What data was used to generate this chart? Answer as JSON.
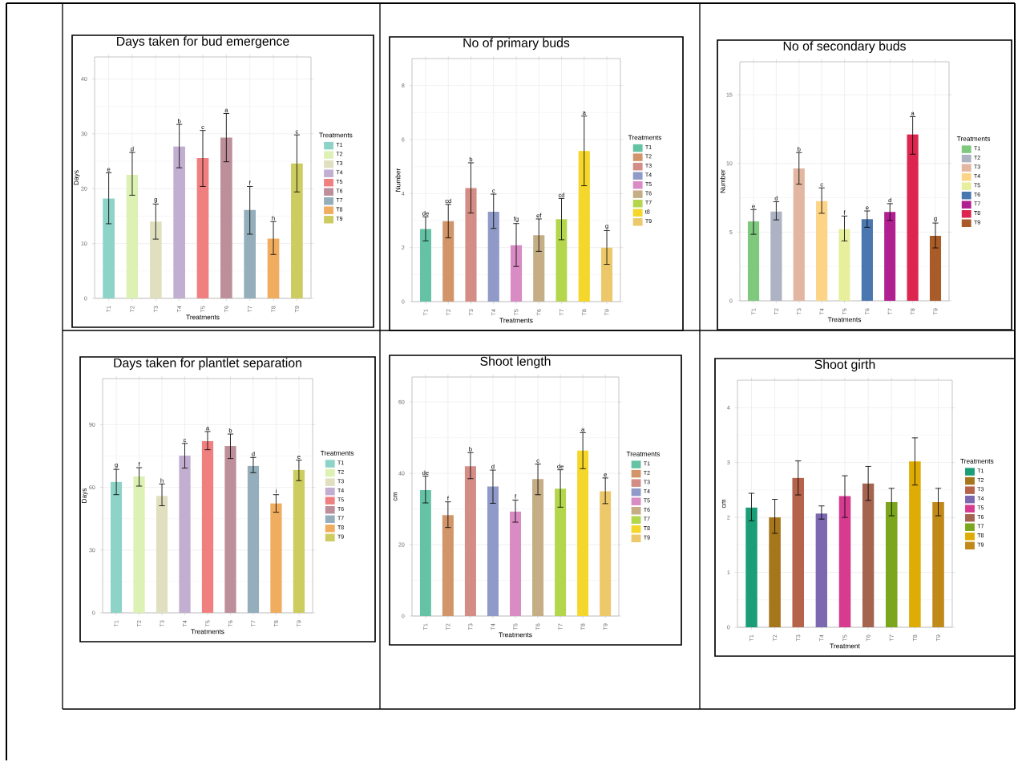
{
  "chart_data": [
    {
      "type": "bar",
      "title": "Days taken for bud emergence",
      "xlabel": "Treatments",
      "ylabel": "Days",
      "legend_title": "Treatments",
      "legend": "right",
      "grid": true,
      "categories": [
        "T1",
        "T2",
        "T3",
        "T4",
        "T5",
        "T6",
        "T7",
        "T8",
        "T9"
      ],
      "series": [
        {
          "name": "T1",
          "color": "#8dd3c7",
          "values": [
            18.2,
            null,
            null,
            null,
            null,
            null,
            null,
            null,
            null
          ],
          "errors": [
            [
              13.6,
              22.9
            ],
            null,
            null,
            null,
            null,
            null,
            null,
            null,
            null
          ]
        },
        {
          "name": "T2",
          "color": "#dcf1b3",
          "values": [
            null,
            22.5,
            null,
            null,
            null,
            null,
            null,
            null,
            null
          ],
          "errors": [
            null,
            [
              18.8,
              26.6
            ],
            null,
            null,
            null,
            null,
            null,
            null,
            null
          ]
        },
        {
          "name": "T3",
          "color": "#e0e0c0",
          "values": [
            null,
            null,
            14.0,
            null,
            null,
            null,
            null,
            null,
            null
          ],
          "errors": [
            null,
            null,
            [
              10.8,
              17.2
            ],
            null,
            null,
            null,
            null,
            null,
            null
          ]
        },
        {
          "name": "T4",
          "color": "#c2aed0",
          "values": [
            null,
            null,
            null,
            27.7,
            null,
            null,
            null,
            null,
            null
          ],
          "errors": [
            null,
            null,
            null,
            [
              23.8,
              31.7
            ],
            null,
            null,
            null,
            null,
            null
          ]
        },
        {
          "name": "T5",
          "color": "#f08080",
          "values": [
            null,
            null,
            null,
            null,
            25.6,
            null,
            null,
            null,
            null
          ],
          "errors": [
            null,
            null,
            null,
            null,
            [
              20.4,
              30.6
            ],
            null,
            null,
            null,
            null
          ]
        },
        {
          "name": "T6",
          "color": "#bc8f9a",
          "values": [
            null,
            null,
            null,
            null,
            null,
            29.3,
            null,
            null,
            null
          ],
          "errors": [
            null,
            null,
            null,
            null,
            null,
            [
              24.9,
              33.7
            ],
            null,
            null,
            null
          ]
        },
        {
          "name": "T7",
          "color": "#94aebb",
          "values": [
            null,
            null,
            null,
            null,
            null,
            null,
            16.1,
            null,
            null
          ],
          "errors": [
            null,
            null,
            null,
            null,
            null,
            null,
            [
              11.7,
              20.4
            ],
            null,
            null
          ]
        },
        {
          "name": "T8",
          "color": "#f0ad60",
          "values": [
            null,
            null,
            null,
            null,
            null,
            null,
            null,
            10.9,
            null
          ],
          "errors": [
            null,
            null,
            null,
            null,
            null,
            null,
            null,
            [
              8.0,
              14.0
            ],
            null
          ]
        },
        {
          "name": "T9",
          "color": "#cccc60",
          "values": [
            null,
            null,
            null,
            null,
            null,
            null,
            null,
            null,
            24.6
          ],
          "errors": [
            null,
            null,
            null,
            null,
            null,
            null,
            null,
            null,
            [
              19.4,
              29.8
            ]
          ]
        }
      ],
      "ylim": [
        0,
        44
      ],
      "yticks": [
        0,
        10,
        20,
        30,
        40
      ],
      "annotations": [
        {
          "text": "e",
          "x": "T1",
          "y": 22.9
        },
        {
          "text": "d",
          "x": "T2",
          "y": 26.6
        },
        {
          "text": "g",
          "x": "T3",
          "y": 17.2
        },
        {
          "text": "b",
          "x": "T4",
          "y": 31.7
        },
        {
          "text": "c",
          "x": "T5",
          "y": 30.6
        },
        {
          "text": "a",
          "x": "T6",
          "y": 33.7
        },
        {
          "text": "f",
          "x": "T7",
          "y": 20.4
        },
        {
          "text": "h",
          "x": "T8",
          "y": 14.0
        },
        {
          "text": "c",
          "x": "T9",
          "y": 29.8
        }
      ]
    },
    {
      "type": "bar",
      "title": "No of primary buds",
      "xlabel": "Treatments",
      "ylabel": "Number",
      "legend_title": "Treatments",
      "legend": "right",
      "grid": true,
      "categories": [
        "T1",
        "T2",
        "T3",
        "T4",
        "T5",
        "T6",
        "T7",
        "T8",
        "T9"
      ],
      "series": [
        {
          "name": "T1",
          "color": "#66c2a5",
          "values": [
            2.69,
            null,
            null,
            null,
            null,
            null,
            null,
            null,
            null
          ],
          "errors": [
            [
              2.25,
              3.14
            ],
            null,
            null,
            null,
            null,
            null,
            null,
            null,
            null
          ]
        },
        {
          "name": "T2",
          "color": "#d2956a",
          "values": [
            null,
            2.98,
            null,
            null,
            null,
            null,
            null,
            null,
            null
          ],
          "errors": [
            null,
            [
              2.36,
              3.6
            ],
            null,
            null,
            null,
            null,
            null,
            null,
            null
          ]
        },
        {
          "name": "T3",
          "color": "#d48d85",
          "values": [
            null,
            null,
            4.21,
            null,
            null,
            null,
            null,
            null,
            null
          ],
          "errors": [
            null,
            null,
            [
              3.28,
              5.14
            ],
            null,
            null,
            null,
            null,
            null,
            null
          ]
        },
        {
          "name": "T4",
          "color": "#8f9ac8",
          "values": [
            null,
            null,
            null,
            3.33,
            null,
            null,
            null,
            null,
            null
          ],
          "errors": [
            null,
            null,
            null,
            [
              2.71,
              3.98
            ],
            null,
            null,
            null,
            null,
            null
          ]
        },
        {
          "name": "T5",
          "color": "#d98bc4",
          "values": [
            null,
            null,
            null,
            null,
            2.09,
            null,
            null,
            null,
            null
          ],
          "errors": [
            null,
            null,
            null,
            null,
            [
              1.3,
              2.89
            ],
            null,
            null,
            null,
            null
          ]
        },
        {
          "name": "T6",
          "color": "#c5ad86",
          "values": [
            null,
            null,
            null,
            null,
            null,
            2.46,
            null,
            null,
            null
          ],
          "errors": [
            null,
            null,
            null,
            null,
            null,
            [
              1.86,
              3.06
            ],
            null,
            null,
            null
          ]
        },
        {
          "name": "T7",
          "color": "#b4d64c",
          "values": [
            null,
            null,
            null,
            null,
            null,
            null,
            3.05,
            null,
            null
          ],
          "errors": [
            null,
            null,
            null,
            null,
            null,
            null,
            [
              2.29,
              3.82
            ],
            null,
            null
          ]
        },
        {
          "name": "t8",
          "color": "#f5d62a",
          "values": [
            null,
            null,
            null,
            null,
            null,
            null,
            null,
            5.58,
            null
          ],
          "errors": [
            null,
            null,
            null,
            null,
            null,
            null,
            null,
            [
              4.29,
              6.87
            ],
            null
          ]
        },
        {
          "name": "T9",
          "color": "#ecc86a",
          "values": [
            null,
            null,
            null,
            null,
            null,
            null,
            null,
            null,
            2.0
          ],
          "errors": [
            null,
            null,
            null,
            null,
            null,
            null,
            null,
            null,
            [
              1.38,
              2.63
            ]
          ]
        }
      ],
      "ylim": [
        0,
        9
      ],
      "yticks": [
        0,
        2,
        4,
        6,
        8
      ],
      "annotations": [
        {
          "text": "de",
          "x": "T1",
          "y": 3.14
        },
        {
          "text": "cd",
          "x": "T2",
          "y": 3.6
        },
        {
          "text": "b",
          "x": "T3",
          "y": 5.14
        },
        {
          "text": "c",
          "x": "T4",
          "y": 3.98
        },
        {
          "text": "fg",
          "x": "T5",
          "y": 2.89
        },
        {
          "text": "ef",
          "x": "T6",
          "y": 3.06
        },
        {
          "text": "cd",
          "x": "T7",
          "y": 3.82
        },
        {
          "text": "a",
          "x": "T8",
          "y": 6.87
        },
        {
          "text": "g",
          "x": "T9",
          "y": 2.63
        }
      ]
    },
    {
      "type": "bar",
      "title": "No of secondary buds",
      "xlabel": "Treatments",
      "ylabel": "Number",
      "legend_title": "Treatments",
      "legend": "right",
      "grid": true,
      "categories": [
        "T1",
        "T2",
        "T3",
        "T4",
        "T5",
        "T6",
        "T7",
        "T8",
        "T9"
      ],
      "series": [
        {
          "name": "T1",
          "color": "#7fc97f",
          "values": [
            5.78,
            null,
            null,
            null,
            null,
            null,
            null,
            null,
            null
          ],
          "errors": [
            [
              4.84,
              6.64
            ],
            null,
            null,
            null,
            null,
            null,
            null,
            null,
            null
          ]
        },
        {
          "name": "T2",
          "color": "#aeb3c4",
          "values": [
            null,
            6.5,
            null,
            null,
            null,
            null,
            null,
            null,
            null
          ],
          "errors": [
            null,
            [
              5.89,
              7.21
            ],
            null,
            null,
            null,
            null,
            null,
            null,
            null
          ]
        },
        {
          "name": "T3",
          "color": "#e3b6a1",
          "values": [
            null,
            null,
            9.63,
            null,
            null,
            null,
            null,
            null,
            null
          ],
          "errors": [
            null,
            null,
            [
              8.49,
              10.79
            ],
            null,
            null,
            null,
            null,
            null,
            null
          ]
        },
        {
          "name": "T4",
          "color": "#fdd486",
          "values": [
            null,
            null,
            null,
            7.25,
            null,
            null,
            null,
            null,
            null
          ],
          "errors": [
            null,
            null,
            null,
            [
              6.37,
              8.22
            ],
            null,
            null,
            null,
            null,
            null
          ]
        },
        {
          "name": "T5",
          "color": "#e7ef9d",
          "values": [
            null,
            null,
            null,
            null,
            5.23,
            null,
            null,
            null,
            null
          ],
          "errors": [
            null,
            null,
            null,
            null,
            [
              4.36,
              6.17
            ],
            null,
            null,
            null,
            null
          ]
        },
        {
          "name": "T6",
          "color": "#4a77b0",
          "values": [
            null,
            null,
            null,
            null,
            null,
            5.94,
            null,
            null,
            null
          ],
          "errors": [
            null,
            null,
            null,
            null,
            null,
            [
              5.35,
              6.54
            ],
            null,
            null,
            null
          ]
        },
        {
          "name": "T7",
          "color": "#b02090",
          "values": [
            null,
            null,
            null,
            null,
            null,
            null,
            6.47,
            null,
            null
          ],
          "errors": [
            null,
            null,
            null,
            null,
            null,
            null,
            [
              5.85,
              7.07
            ],
            null,
            null
          ]
        },
        {
          "name": "T8",
          "color": "#dc2650",
          "values": [
            null,
            null,
            null,
            null,
            null,
            null,
            null,
            12.11,
            null
          ],
          "errors": [
            null,
            null,
            null,
            null,
            null,
            null,
            null,
            [
              10.67,
              13.4
            ],
            null
          ]
        },
        {
          "name": "T9",
          "color": "#a95c28",
          "values": [
            null,
            null,
            null,
            null,
            null,
            null,
            null,
            null,
            4.73
          ],
          "errors": [
            null,
            null,
            null,
            null,
            null,
            null,
            null,
            null,
            [
              3.85,
              5.66
            ]
          ]
        }
      ],
      "ylim": [
        0,
        17.4
      ],
      "yticks": [
        0,
        5,
        10,
        15
      ],
      "annotations": [
        {
          "text": "e",
          "x": "T1",
          "y": 6.64
        },
        {
          "text": "d",
          "x": "T2",
          "y": 7.21
        },
        {
          "text": "b",
          "x": "T3",
          "y": 10.79
        },
        {
          "text": "c",
          "x": "T4",
          "y": 8.22
        },
        {
          "text": "f",
          "x": "T5",
          "y": 6.17
        },
        {
          "text": "e",
          "x": "T6",
          "y": 6.54
        },
        {
          "text": "d",
          "x": "T7",
          "y": 7.07
        },
        {
          "text": "a",
          "x": "T8",
          "y": 13.4
        },
        {
          "text": "g",
          "x": "T9",
          "y": 5.66
        }
      ]
    },
    {
      "type": "bar",
      "title": "Days taken for plantlet separation",
      "xlabel": "Treatments",
      "ylabel": "Days",
      "legend_title": "Treatments",
      "legend": "right",
      "grid": true,
      "categories": [
        "T1",
        "T2",
        "T3",
        "T4",
        "T5",
        "T6",
        "T7",
        "T8",
        "T9"
      ],
      "series": [
        {
          "name": "T1",
          "color": "#8dd3c7",
          "values": [
            62.6,
            null,
            null,
            null,
            null,
            null,
            null,
            null,
            null
          ],
          "errors": [
            [
              56.5,
              68.6
            ],
            null,
            null,
            null,
            null,
            null,
            null,
            null,
            null
          ]
        },
        {
          "name": "T2",
          "color": "#dcf1b3",
          "values": [
            null,
            65.2,
            null,
            null,
            null,
            null,
            null,
            null,
            null
          ],
          "errors": [
            null,
            [
              60.6,
              69.4
            ],
            null,
            null,
            null,
            null,
            null,
            null,
            null
          ]
        },
        {
          "name": "T3",
          "color": "#e0e0c0",
          "values": [
            null,
            null,
            55.9,
            null,
            null,
            null,
            null,
            null,
            null
          ],
          "errors": [
            null,
            null,
            [
              51.2,
              61.6
            ],
            null,
            null,
            null,
            null,
            null,
            null
          ]
        },
        {
          "name": "T4",
          "color": "#c2aed0",
          "values": [
            null,
            null,
            null,
            75.2,
            null,
            null,
            null,
            null,
            null
          ],
          "errors": [
            null,
            null,
            null,
            [
              69.2,
              81.0
            ],
            null,
            null,
            null,
            null,
            null
          ]
        },
        {
          "name": "T5",
          "color": "#f08080",
          "values": [
            null,
            null,
            null,
            null,
            82.1,
            null,
            null,
            null,
            null
          ],
          "errors": [
            null,
            null,
            null,
            null,
            [
              78.0,
              86.7
            ],
            null,
            null,
            null,
            null
          ]
        },
        {
          "name": "T6",
          "color": "#bc8f9a",
          "values": [
            null,
            null,
            null,
            null,
            null,
            79.8,
            null,
            null,
            null
          ],
          "errors": [
            null,
            null,
            null,
            null,
            null,
            [
              73.8,
              85.5
            ],
            null,
            null,
            null
          ]
        },
        {
          "name": "T7",
          "color": "#94aebb",
          "values": [
            null,
            null,
            null,
            null,
            null,
            null,
            70.3,
            null,
            null
          ],
          "errors": [
            null,
            null,
            null,
            null,
            null,
            null,
            [
              67.0,
              74.3
            ],
            null,
            null
          ]
        },
        {
          "name": "T8",
          "color": "#f0ad60",
          "values": [
            null,
            null,
            null,
            null,
            null,
            null,
            null,
            52.4,
            null
          ],
          "errors": [
            null,
            null,
            null,
            null,
            null,
            null,
            null,
            [
              48.1,
              56.5
            ],
            null
          ]
        },
        {
          "name": "T9",
          "color": "#cccc60",
          "values": [
            null,
            null,
            null,
            null,
            null,
            null,
            null,
            null,
            68.4
          ],
          "errors": [
            null,
            null,
            null,
            null,
            null,
            null,
            null,
            null,
            [
              63.2,
              73.0
            ]
          ]
        }
      ],
      "ylim": [
        0,
        112
      ],
      "yticks": [
        0,
        30,
        60,
        90
      ],
      "annotations": [
        {
          "text": "g",
          "x": "T1",
          "y": 68.6
        },
        {
          "text": "f",
          "x": "T2",
          "y": 69.4
        },
        {
          "text": "h",
          "x": "T3",
          "y": 61.6
        },
        {
          "text": "c",
          "x": "T4",
          "y": 81.0
        },
        {
          "text": "a",
          "x": "T5",
          "y": 86.7
        },
        {
          "text": "b",
          "x": "T6",
          "y": 85.5
        },
        {
          "text": "d",
          "x": "T7",
          "y": 74.3
        },
        {
          "text": "i",
          "x": "T8",
          "y": 56.5
        },
        {
          "text": "e",
          "x": "T9",
          "y": 73.0
        }
      ]
    },
    {
      "type": "bar",
      "title": "Shoot length",
      "xlabel": "Treatments",
      "ylabel": "cm",
      "legend_title": "Treatments",
      "legend": "right",
      "grid": true,
      "categories": [
        "T1",
        "T2",
        "T3",
        "T4",
        "T5",
        "T6",
        "T7",
        "T8",
        "T9"
      ],
      "series": [
        {
          "name": "T1",
          "color": "#66c2a5",
          "values": [
            35.3,
            null,
            null,
            null,
            null,
            null,
            null,
            null,
            null
          ],
          "errors": [
            [
              31.7,
              39.2
            ],
            null,
            null,
            null,
            null,
            null,
            null,
            null,
            null
          ]
        },
        {
          "name": "T2",
          "color": "#d2956a",
          "values": [
            null,
            28.3,
            null,
            null,
            null,
            null,
            null,
            null,
            null
          ],
          "errors": [
            null,
            [
              24.8,
              32.0
            ],
            null,
            null,
            null,
            null,
            null,
            null,
            null
          ]
        },
        {
          "name": "T3",
          "color": "#d48d85",
          "values": [
            null,
            null,
            42.0,
            null,
            null,
            null,
            null,
            null,
            null
          ],
          "errors": [
            null,
            null,
            [
              38.5,
              45.8
            ],
            null,
            null,
            null,
            null,
            null,
            null
          ]
        },
        {
          "name": "T4",
          "color": "#8f9ac8",
          "values": [
            null,
            null,
            null,
            36.3,
            null,
            null,
            null,
            null,
            null
          ],
          "errors": [
            null,
            null,
            null,
            [
              31.6,
              40.9
            ],
            null,
            null,
            null,
            null,
            null
          ]
        },
        {
          "name": "T5",
          "color": "#d98bc4",
          "values": [
            null,
            null,
            null,
            null,
            29.3,
            null,
            null,
            null,
            null
          ],
          "errors": [
            null,
            null,
            null,
            null,
            [
              26.3,
              32.5
            ],
            null,
            null,
            null,
            null
          ]
        },
        {
          "name": "T6",
          "color": "#c5ad86",
          "values": [
            null,
            null,
            null,
            null,
            null,
            38.4,
            null,
            null,
            null
          ],
          "errors": [
            null,
            null,
            null,
            null,
            null,
            [
              34.0,
              42.6
            ],
            null,
            null,
            null
          ]
        },
        {
          "name": "T7",
          "color": "#b4d64c",
          "values": [
            null,
            null,
            null,
            null,
            null,
            null,
            35.7,
            null,
            null
          ],
          "errors": [
            null,
            null,
            null,
            null,
            null,
            null,
            [
              30.5,
              41.0
            ],
            null,
            null
          ]
        },
        {
          "name": "T8",
          "color": "#f5d62a",
          "values": [
            null,
            null,
            null,
            null,
            null,
            null,
            null,
            46.4,
            null
          ],
          "errors": [
            null,
            null,
            null,
            null,
            null,
            null,
            null,
            [
              41.3,
              51.4
            ],
            null
          ]
        },
        {
          "name": "T9",
          "color": "#ecc86a",
          "values": [
            null,
            null,
            null,
            null,
            null,
            null,
            null,
            null,
            35.0
          ],
          "errors": [
            null,
            null,
            null,
            null,
            null,
            null,
            null,
            null,
            [
              31.5,
              38.7
            ]
          ]
        }
      ],
      "ylim": [
        0,
        67
      ],
      "yticks": [
        0,
        20,
        40,
        60
      ],
      "annotations": [
        {
          "text": "de",
          "x": "T1",
          "y": 39.2
        },
        {
          "text": "f",
          "x": "T2",
          "y": 32.0
        },
        {
          "text": "b",
          "x": "T3",
          "y": 45.8
        },
        {
          "text": "d",
          "x": "T4",
          "y": 40.9
        },
        {
          "text": "f",
          "x": "T5",
          "y": 32.5
        },
        {
          "text": "c",
          "x": "T6",
          "y": 42.6
        },
        {
          "text": "de",
          "x": "T7",
          "y": 41.0
        },
        {
          "text": "a",
          "x": "T8",
          "y": 51.4
        },
        {
          "text": "e",
          "x": "T9",
          "y": 38.7
        }
      ]
    },
    {
      "type": "bar",
      "title": "Shoot girth",
      "xlabel": "Treatment",
      "ylabel": "cm",
      "legend_title": "Treatments",
      "legend": "right",
      "grid": true,
      "categories": [
        "T1",
        "T2",
        "T3",
        "T4",
        "T5",
        "T6",
        "T7",
        "T8",
        "T9"
      ],
      "series": [
        {
          "name": "T1",
          "color": "#1b9e77",
          "values": [
            2.18,
            null,
            null,
            null,
            null,
            null,
            null,
            null,
            null
          ],
          "errors": [
            [
              1.94,
              2.44
            ],
            null,
            null,
            null,
            null,
            null,
            null,
            null,
            null
          ]
        },
        {
          "name": "T2",
          "color": "#a6761d",
          "values": [
            null,
            2.0,
            null,
            null,
            null,
            null,
            null,
            null,
            null
          ],
          "errors": [
            null,
            [
              1.71,
              2.33
            ],
            null,
            null,
            null,
            null,
            null,
            null,
            null
          ]
        },
        {
          "name": "T3",
          "color": "#b5634a",
          "values": [
            null,
            null,
            2.72,
            null,
            null,
            null,
            null,
            null,
            null
          ],
          "errors": [
            null,
            null,
            [
              2.41,
              3.03
            ],
            null,
            null,
            null,
            null,
            null,
            null
          ]
        },
        {
          "name": "T4",
          "color": "#7b68b0",
          "values": [
            null,
            null,
            null,
            2.07,
            null,
            null,
            null,
            null,
            null
          ],
          "errors": [
            null,
            null,
            null,
            [
              1.97,
              2.21
            ],
            null,
            null,
            null,
            null,
            null
          ]
        },
        {
          "name": "T5",
          "color": "#d63b8f",
          "values": [
            null,
            null,
            null,
            null,
            2.39,
            null,
            null,
            null,
            null
          ],
          "errors": [
            null,
            null,
            null,
            null,
            [
              2.0,
              2.76
            ],
            null,
            null,
            null,
            null
          ]
        },
        {
          "name": "T6",
          "color": "#a5644f",
          "values": [
            null,
            null,
            null,
            null,
            null,
            2.62,
            null,
            null,
            null
          ],
          "errors": [
            null,
            null,
            null,
            null,
            null,
            [
              2.31,
              2.93
            ],
            null,
            null,
            null
          ]
        },
        {
          "name": "T7",
          "color": "#7ba61d",
          "values": [
            null,
            null,
            null,
            null,
            null,
            null,
            2.28,
            null,
            null
          ],
          "errors": [
            null,
            null,
            null,
            null,
            null,
            null,
            [
              2.03,
              2.53
            ],
            null,
            null
          ]
        },
        {
          "name": "T8",
          "color": "#dfac05",
          "values": [
            null,
            null,
            null,
            null,
            null,
            null,
            null,
            3.02,
            null
          ],
          "errors": [
            null,
            null,
            null,
            null,
            null,
            null,
            null,
            [
              2.59,
              3.45
            ],
            null
          ]
        },
        {
          "name": "T9",
          "color": "#c08918",
          "values": [
            null,
            null,
            null,
            null,
            null,
            null,
            null,
            null,
            2.28
          ],
          "errors": [
            null,
            null,
            null,
            null,
            null,
            null,
            null,
            null,
            [
              2.03,
              2.53
            ]
          ]
        }
      ],
      "ylim": [
        0,
        4.5
      ],
      "yticks": [
        0,
        1,
        2,
        3,
        4
      ]
    }
  ]
}
